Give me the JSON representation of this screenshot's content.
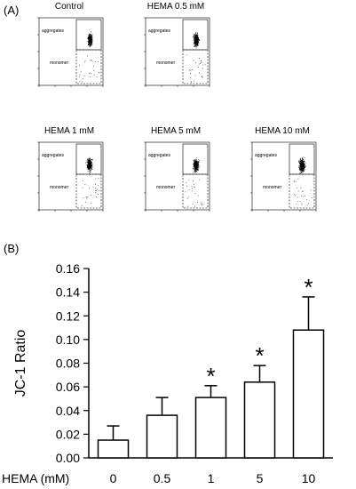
{
  "panel_a": {
    "label": "(A)",
    "plots": [
      {
        "title": "Control",
        "aggregates_label": "aggregates",
        "monomer_label": "monomer",
        "spread": 0.6,
        "density": 420
      },
      {
        "title": "HEMA 0.5 mM",
        "aggregates_label": "aggregates",
        "monomer_label": "monomer",
        "spread": 0.7,
        "density": 420
      },
      {
        "title": "HEMA 1 mM",
        "aggregates_label": "aggregates",
        "monomer_label": "monomer",
        "spread": 0.8,
        "density": 420
      },
      {
        "title": "HEMA 5 mM",
        "aggregates_label": "aggregates",
        "monomer_label": "monomer",
        "spread": 0.85,
        "density": 420
      },
      {
        "title": "HEMA 10 mM",
        "aggregates_label": "aggregates",
        "monomer_label": "monomer",
        "spread": 1.0,
        "density": 480
      }
    ]
  },
  "panel_b": {
    "label": "(B)"
  },
  "chart_data": {
    "type": "bar",
    "categories": [
      "0",
      "0.5",
      "1",
      "5",
      "10"
    ],
    "values": [
      0.015,
      0.036,
      0.051,
      0.064,
      0.108
    ],
    "errors": [
      0.012,
      0.015,
      0.01,
      0.014,
      0.028
    ],
    "significant": [
      false,
      false,
      true,
      true,
      true
    ],
    "significance_marker": "*",
    "ylabel": "JC-1 Ratio",
    "xlabel": "HEMA (mM)",
    "ylim": [
      0,
      0.16
    ],
    "yticks": [
      "0.00",
      "0.02",
      "0.04",
      "0.06",
      "0.08",
      "0.10",
      "0.12",
      "0.14",
      "0.16"
    ],
    "grid": false,
    "bar_fill": "#ffffff",
    "bar_stroke": "#000000"
  }
}
